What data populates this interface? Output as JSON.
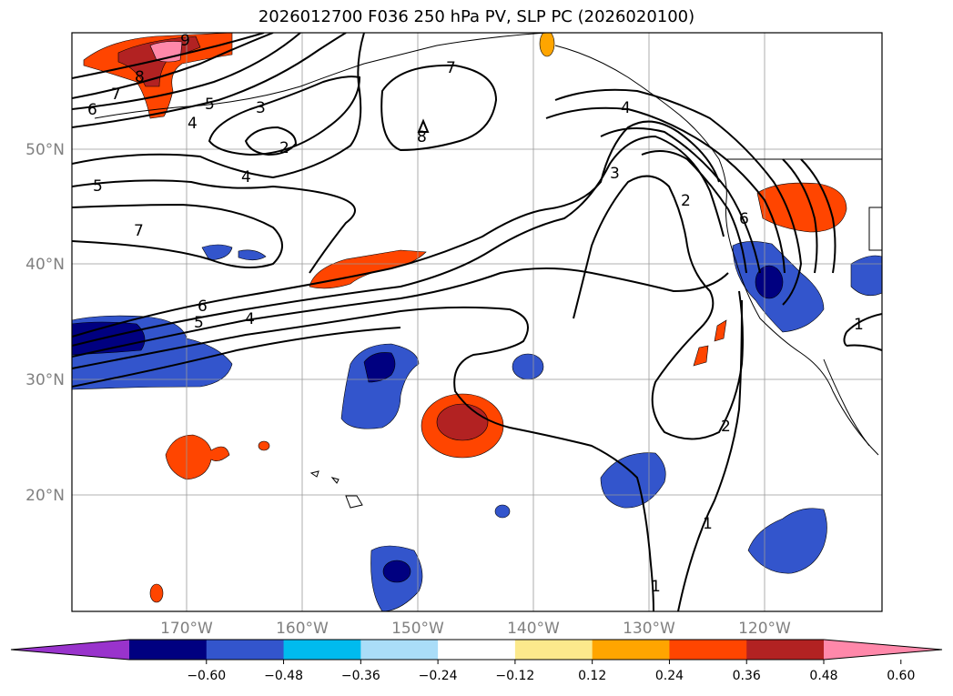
{
  "title": "2026012700 F036 250 hPa PV, SLP PC (2026020100)",
  "map": {
    "lat_labels": [
      "50°N",
      "40°N",
      "30°N",
      "20°N"
    ],
    "lon_labels": [
      "170°W",
      "160°W",
      "150°W",
      "140°W",
      "130°W",
      "120°W"
    ],
    "gridlines": true
  },
  "colorbar": {
    "colors": [
      "#9933cc",
      "#000080",
      "#3355cc",
      "#00bbee",
      "#aaddf8",
      "#ffffff",
      "#fce98c",
      "#ffa500",
      "#ff4500",
      "#b22222",
      "#ff88aa"
    ],
    "tick_labels": [
      "−0.60",
      "−0.48",
      "−0.36",
      "−0.24",
      "−0.12",
      "0.12",
      "0.24",
      "0.36",
      "0.48",
      "0.60"
    ],
    "extend": "both"
  },
  "contour_labels": [
    "9",
    "8",
    "7",
    "6",
    "5",
    "4",
    "3",
    "2",
    "7",
    "8",
    "5",
    "4",
    "7",
    "6",
    "5",
    "4",
    "3",
    "2",
    "6",
    "2",
    "1",
    "1",
    "1",
    "4"
  ]
}
